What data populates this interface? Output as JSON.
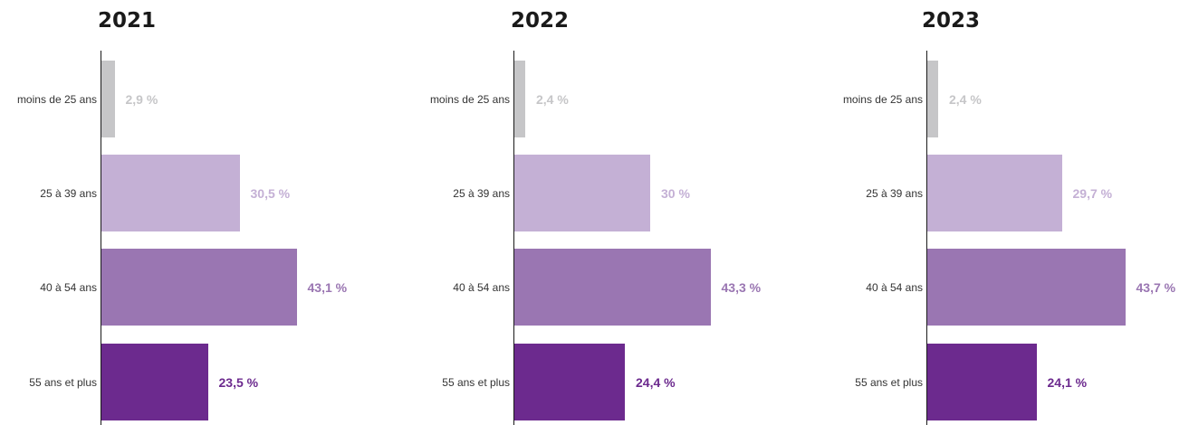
{
  "chart_data": [
    {
      "type": "bar",
      "orientation": "horizontal",
      "title": "2021",
      "categories": [
        "moins de 25 ans",
        "25 à 39 ans",
        "40 à 54 ans",
        "55 ans et plus"
      ],
      "values": [
        2.9,
        30.5,
        43.1,
        23.5
      ],
      "value_labels": [
        "2,9 %",
        "30,5 %",
        "43,1 %",
        "23,5 %"
      ],
      "colors": [
        "#c6c6c8",
        "#c4b0d5",
        "#9a76b2",
        "#6c2a8e"
      ],
      "grid": false
    },
    {
      "type": "bar",
      "orientation": "horizontal",
      "title": "2022",
      "categories": [
        "moins de 25 ans",
        "25 à 39 ans",
        "40 à 54 ans",
        "55 ans et plus"
      ],
      "values": [
        2.4,
        30,
        43.3,
        24.4
      ],
      "value_labels": [
        "2,4 %",
        "30 %",
        "43,3 %",
        "24,4 %"
      ],
      "colors": [
        "#c6c6c8",
        "#c4b0d5",
        "#9a76b2",
        "#6c2a8e"
      ],
      "grid": false
    },
    {
      "type": "bar",
      "orientation": "horizontal",
      "title": "2023",
      "categories": [
        "moins de 25 ans",
        "25 à 39 ans",
        "40 à 54 ans",
        "55 ans et plus"
      ],
      "values": [
        2.4,
        29.7,
        43.7,
        24.1
      ],
      "value_labels": [
        "2,4 %",
        "29,7 %",
        "43,7 %",
        "24,1 %"
      ],
      "colors": [
        "#c6c6c8",
        "#c4b0d5",
        "#9a76b2",
        "#6c2a8e"
      ],
      "grid": false
    }
  ]
}
